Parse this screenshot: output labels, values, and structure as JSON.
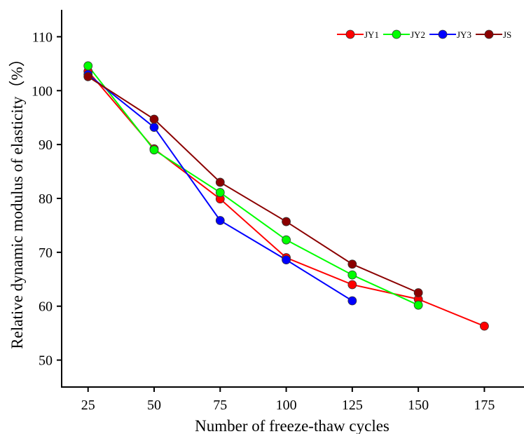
{
  "chart_data": {
    "type": "line",
    "title": "",
    "xlabel": "Number of freeze-thaw cycles",
    "ylabel": "Relative dynamic modulus of elasticity（%）",
    "xlim": [
      15,
      190
    ],
    "ylim": [
      45,
      115
    ],
    "xticks": [
      25,
      50,
      75,
      100,
      125,
      150,
      175
    ],
    "yticks": [
      50,
      60,
      70,
      80,
      90,
      100,
      110
    ],
    "grid": false,
    "legend_position": "top-right",
    "series": [
      {
        "name": "JY1",
        "color": "#ff0000",
        "x": [
          25,
          50,
          75,
          100,
          125,
          150,
          175
        ],
        "y": [
          103.6,
          89.2,
          79.9,
          69.0,
          64.0,
          61.3,
          56.3
        ]
      },
      {
        "name": "JY2",
        "color": "#00ff00",
        "x": [
          25,
          50,
          75,
          100,
          125,
          150
        ],
        "y": [
          104.6,
          89.0,
          81.1,
          72.3,
          65.8,
          60.2
        ]
      },
      {
        "name": "JY3",
        "color": "#0000ff",
        "x": [
          25,
          50,
          75,
          100,
          125
        ],
        "y": [
          103.0,
          93.2,
          75.9,
          68.6,
          61.0
        ]
      },
      {
        "name": "JS",
        "color": "#8b0000",
        "x": [
          25,
          50,
          75,
          100,
          125,
          150
        ],
        "y": [
          102.6,
          94.7,
          83.0,
          75.7,
          67.8,
          62.5
        ]
      }
    ]
  }
}
